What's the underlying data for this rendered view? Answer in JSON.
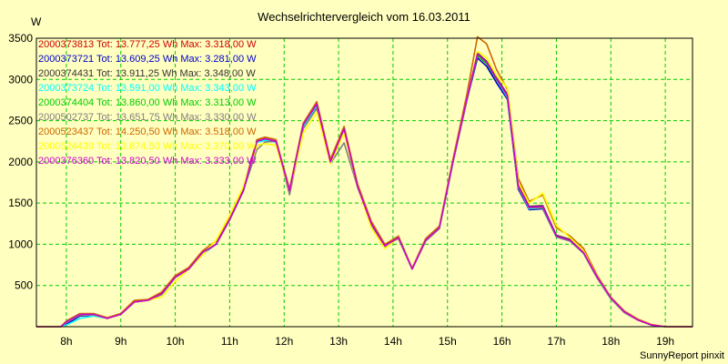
{
  "chart_data": {
    "type": "line",
    "title": "Wechselrichtervergleich vom 16.03.2011",
    "ylabel": "W",
    "xlabel": "",
    "credit": "SunnyReport pinxit",
    "ylim": [
      0,
      3500
    ],
    "xlim": [
      7.45,
      19.5
    ],
    "yticks": [
      500,
      1000,
      1500,
      2000,
      2500,
      3000,
      3500
    ],
    "xticks": [
      8,
      9,
      10,
      11,
      12,
      13,
      14,
      15,
      16,
      17,
      18,
      19
    ],
    "xtick_labels": [
      "8h",
      "9h",
      "10h",
      "11h",
      "12h",
      "13h",
      "14h",
      "15h",
      "16h",
      "17h",
      "18h",
      "19h"
    ],
    "grid": true,
    "legend_position": "top-left",
    "background_color": "#ffffc0",
    "grid_color": "#00cc00",
    "x": [
      7.45,
      7.9,
      8.0,
      8.25,
      8.5,
      8.75,
      9.0,
      9.25,
      9.5,
      9.75,
      10.0,
      10.25,
      10.5,
      10.75,
      11.0,
      11.25,
      11.5,
      11.65,
      11.85,
      12.1,
      12.35,
      12.6,
      12.85,
      13.1,
      13.35,
      13.6,
      13.85,
      14.1,
      14.35,
      14.6,
      14.85,
      15.1,
      15.35,
      15.55,
      15.72,
      15.9,
      16.1,
      16.3,
      16.5,
      16.75,
      17.0,
      17.25,
      17.5,
      17.75,
      18.0,
      18.25,
      18.5,
      18.75,
      19.0,
      19.25,
      19.5
    ],
    "series": [
      {
        "name": "2000373813",
        "label": "2000373813 Tot: 13.777,25 Wh Max: 3.318,00 W",
        "color": "#cc0000",
        "values": [
          0,
          0,
          60,
          150,
          150,
          100,
          150,
          300,
          320,
          400,
          600,
          700,
          900,
          1000,
          1300,
          1650,
          2250,
          2280,
          2250,
          1650,
          2450,
          2700,
          2000,
          2400,
          1700,
          1250,
          980,
          1080,
          700,
          1050,
          1200,
          2000,
          2750,
          3300,
          3200,
          3000,
          2800,
          1700,
          1450,
          1450,
          1100,
          1050,
          900,
          600,
          350,
          180,
          80,
          20,
          0,
          0,
          0
        ]
      },
      {
        "name": "2000373721",
        "label": "2000373721 Tot: 13.609,25 Wh Max: 3.281,00 W",
        "color": "#0000cc",
        "values": [
          0,
          0,
          30,
          130,
          140,
          100,
          150,
          300,
          320,
          390,
          600,
          700,
          880,
          1000,
          1300,
          1650,
          2240,
          2260,
          2240,
          1640,
          2430,
          2680,
          1990,
          2380,
          1690,
          1240,
          970,
          1070,
          700,
          1040,
          1190,
          1990,
          2730,
          3260,
          3160,
          2960,
          2760,
          1670,
          1420,
          1430,
          1090,
          1040,
          890,
          590,
          340,
          170,
          80,
          20,
          0,
          0,
          0
        ]
      },
      {
        "name": "2000374431",
        "label": "2000374431 Tot: 13.911,25 Wh Max: 3.348,00 W",
        "color": "#333333",
        "values": [
          0,
          0,
          60,
          150,
          150,
          100,
          150,
          300,
          320,
          400,
          600,
          700,
          900,
          1000,
          1300,
          1650,
          2250,
          2280,
          2250,
          1650,
          2450,
          2700,
          2000,
          2400,
          1700,
          1250,
          980,
          1080,
          700,
          1050,
          1200,
          2000,
          2750,
          3320,
          3220,
          3020,
          2820,
          1720,
          1460,
          1470,
          1110,
          1060,
          910,
          600,
          350,
          180,
          80,
          20,
          0,
          0,
          0
        ]
      },
      {
        "name": "2000373724",
        "label": "2000373724 Tot: 13.591,00 Wh Max: 3.343,00 W",
        "color": "#00ffff",
        "values": [
          0,
          0,
          20,
          100,
          130,
          100,
          150,
          300,
          320,
          390,
          600,
          700,
          880,
          1000,
          1300,
          1650,
          2240,
          2260,
          2240,
          1640,
          2430,
          2680,
          1990,
          2380,
          1690,
          1240,
          970,
          1070,
          700,
          1040,
          1190,
          1990,
          2730,
          3300,
          3200,
          3000,
          2780,
          1690,
          1430,
          1440,
          1090,
          1040,
          890,
          590,
          340,
          170,
          80,
          20,
          0,
          0,
          0
        ]
      },
      {
        "name": "2000374404",
        "label": "2000374404 Tot: 13.860,00 Wh Max: 3.313,00 W",
        "color": "#00cc00",
        "values": [
          0,
          0,
          60,
          150,
          150,
          100,
          150,
          300,
          320,
          400,
          600,
          700,
          900,
          1000,
          1300,
          1650,
          2250,
          2280,
          2250,
          1650,
          2450,
          2700,
          2000,
          2400,
          1700,
          1250,
          980,
          1080,
          700,
          1050,
          1200,
          2000,
          2750,
          3290,
          3190,
          3000,
          2800,
          1700,
          1450,
          1450,
          1100,
          1050,
          900,
          600,
          350,
          180,
          80,
          20,
          0,
          0,
          0
        ]
      },
      {
        "name": "2000502737",
        "label": "2000502737 Tot: 13.651,75 Wh Max: 3.330,00 W",
        "color": "#808080",
        "values": [
          0,
          0,
          50,
          140,
          145,
          100,
          150,
          300,
          320,
          390,
          600,
          700,
          890,
          1000,
          1300,
          1650,
          2150,
          2240,
          2250,
          1600,
          2400,
          2650,
          1980,
          2230,
          1690,
          1240,
          970,
          1070,
          700,
          1040,
          1190,
          1990,
          2720,
          3310,
          3210,
          3010,
          2790,
          1690,
          1440,
          1440,
          1090,
          1040,
          890,
          590,
          340,
          170,
          80,
          20,
          0,
          0,
          0
        ]
      },
      {
        "name": "2000523437",
        "label": "2000523437 Tot: 14.250,50 Wh Max: 3.518,00 W",
        "color": "#cc6600",
        "values": [
          0,
          0,
          70,
          160,
          160,
          110,
          160,
          320,
          330,
          420,
          620,
          720,
          920,
          1040,
          1330,
          1680,
          2270,
          2300,
          2270,
          1670,
          2470,
          2730,
          2030,
          2430,
          1730,
          1280,
          1000,
          1100,
          710,
          1070,
          1220,
          2030,
          2800,
          3518,
          3430,
          3120,
          2880,
          1800,
          1520,
          1600,
          1200,
          1100,
          950,
          620,
          360,
          190,
          90,
          25,
          0,
          0,
          0
        ]
      },
      {
        "name": "2000524439",
        "label": "2000524439 Tot: 13.874,50 Wh Max: 3.370,00 W",
        "color": "#ffff00",
        "values": [
          0,
          0,
          60,
          150,
          150,
          100,
          150,
          300,
          320,
          360,
          550,
          700,
          870,
          1050,
          1350,
          1700,
          2200,
          2220,
          2200,
          1650,
          2350,
          2600,
          1980,
          2350,
          1700,
          1200,
          950,
          1080,
          700,
          1050,
          1200,
          2000,
          2750,
          3340,
          3260,
          3050,
          2900,
          1750,
          1500,
          1620,
          1230,
          1080,
          920,
          600,
          350,
          180,
          80,
          20,
          0,
          0,
          0
        ]
      },
      {
        "name": "2000376360",
        "label": "2000376360 Tot: 13.820,50 Wh Max: 3.333,00 W",
        "color": "#cc00cc",
        "values": [
          0,
          0,
          60,
          150,
          150,
          100,
          150,
          300,
          320,
          400,
          600,
          700,
          900,
          1000,
          1300,
          1650,
          2250,
          2280,
          2250,
          1650,
          2450,
          2700,
          2000,
          2400,
          1700,
          1250,
          980,
          1080,
          700,
          1050,
          1200,
          2000,
          2750,
          3310,
          3210,
          3010,
          2810,
          1710,
          1450,
          1460,
          1100,
          1050,
          900,
          600,
          350,
          180,
          80,
          20,
          0,
          0,
          0
        ]
      }
    ]
  }
}
